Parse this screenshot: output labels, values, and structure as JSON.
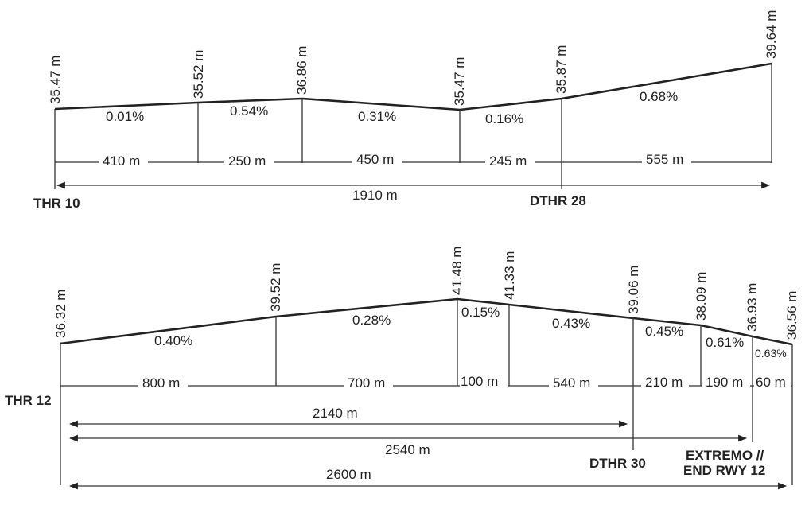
{
  "profile_top": {
    "elevations": [
      "35.47 m",
      "35.52 m",
      "36.86 m",
      "35.47 m",
      "35.87 m",
      "39.64 m"
    ],
    "gradients": [
      "0.01%",
      "0.54%",
      "0.31%",
      "0.16%",
      "0.68%"
    ],
    "segments": [
      "410 m",
      "250 m",
      "450 m",
      "245 m",
      "555 m"
    ],
    "total": "1910 m",
    "start_label": "THR 10",
    "dthr_label": "DTHR 28"
  },
  "profile_bottom": {
    "elevations": [
      "36.32 m",
      "39.52 m",
      "41.48 m",
      "41.33 m",
      "39.06 m",
      "38.09 m",
      "36.93 m",
      "36.56 m"
    ],
    "gradients": [
      "0.40%",
      "0.28%",
      "0.15%",
      "0.43%",
      "0.45%",
      "0.61%",
      "0.63%"
    ],
    "segments": [
      "800 m",
      "700 m",
      "100 m",
      "540 m",
      "210 m",
      "190 m",
      "60 m"
    ],
    "dist_a": "2140 m",
    "dist_b": "2540 m",
    "dist_c": "2600 m",
    "start_label": "THR 12",
    "dthr_label": "DTHR 30",
    "end_label_1": "EXTREMO //",
    "end_label_2": "END RWY 12"
  }
}
